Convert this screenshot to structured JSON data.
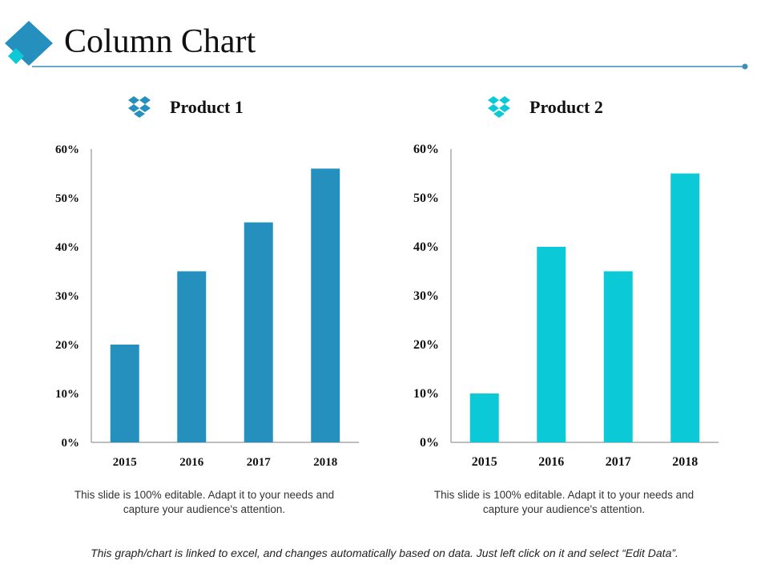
{
  "slide": {
    "title": "Column Chart",
    "footer": "This graph/chart is linked to excel, and changes automatically based on data. Just left click on it and select “Edit Data”.",
    "colors": {
      "dark": "#2590bd",
      "light": "#0cc9d7",
      "rule": "#3a8fb7"
    }
  },
  "captions": [
    "This slide is 100% editable. Adapt it to your needs and capture your audience's attention.",
    "This slide is 100% editable. Adapt it to your needs and capture your audience's attention."
  ],
  "chart_data": [
    {
      "type": "bar",
      "title": "Product 1",
      "icon": "dropbox-icon",
      "categories": [
        "2015",
        "2016",
        "2017",
        "2018"
      ],
      "values": [
        20,
        35,
        45,
        56
      ],
      "ylim": [
        0,
        60
      ],
      "yticks": [
        "0%",
        "10%",
        "20%",
        "30%",
        "40%",
        "50%",
        "60%"
      ],
      "xlabel": "",
      "ylabel": "",
      "grid": false,
      "color": "#2590bd"
    },
    {
      "type": "bar",
      "title": "Product 2",
      "icon": "dropbox-icon",
      "categories": [
        "2015",
        "2016",
        "2017",
        "2018"
      ],
      "values": [
        10,
        40,
        35,
        55
      ],
      "ylim": [
        0,
        60
      ],
      "yticks": [
        "0%",
        "10%",
        "20%",
        "30%",
        "40%",
        "50%",
        "60%"
      ],
      "xlabel": "",
      "ylabel": "",
      "grid": false,
      "color": "#0cc9d7"
    }
  ]
}
